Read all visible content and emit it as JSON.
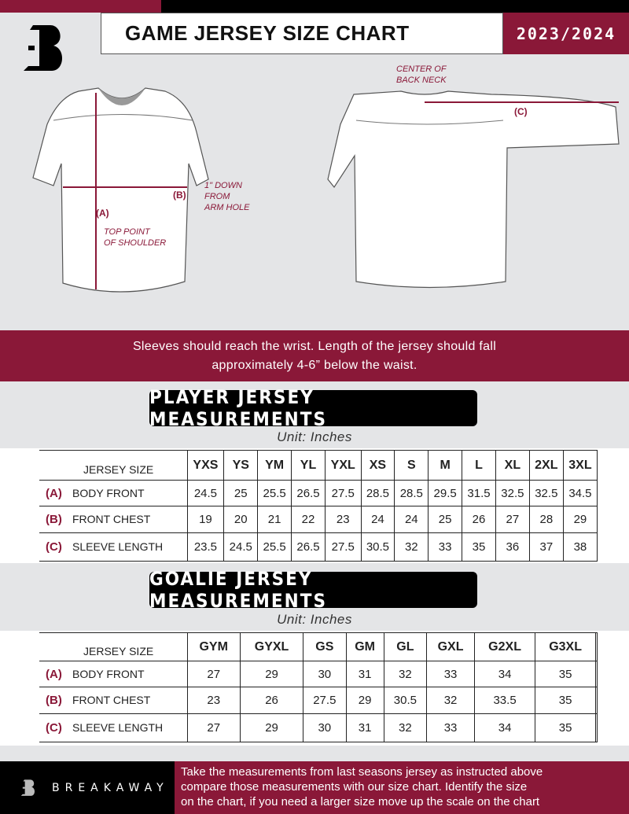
{
  "header": {
    "title": "GAME JERSEY SIZE CHART",
    "season": "2023/2024"
  },
  "diagram": {
    "label_a": "(A)",
    "label_b": "(B)",
    "label_c": "(C)",
    "top_point": [
      "TOP POINT",
      "OF SHOULDER"
    ],
    "down_from_arm": [
      "1\" DOWN",
      "FROM",
      "ARM HOLE"
    ],
    "center_back": [
      "CENTER OF",
      "BACK NECK"
    ]
  },
  "instruction": [
    "Sleeves should reach the wrist. Length of the jersey should fall",
    "approximately 4-6” below the waist."
  ],
  "player": {
    "title": "PLAYER JERSEY MEASUREMENTS",
    "unit": "Unit: Inches",
    "size_label": "JERSEY SIZE",
    "sizes": [
      "YXS",
      "YS",
      "YM",
      "YL",
      "YXL",
      "XS",
      "S",
      "M",
      "L",
      "XL",
      "2XL",
      "3XL"
    ],
    "rows": [
      {
        "letter": "(A)",
        "name": "BODY FRONT",
        "values": [
          "24.5",
          "25",
          "25.5",
          "26.5",
          "27.5",
          "28.5",
          "28.5",
          "29.5",
          "31.5",
          "32.5",
          "32.5",
          "34.5"
        ]
      },
      {
        "letter": "(B)",
        "name": "FRONT CHEST",
        "values": [
          "19",
          "20",
          "21",
          "22",
          "23",
          "24",
          "24",
          "25",
          "26",
          "27",
          "28",
          "29"
        ]
      },
      {
        "letter": "(C)",
        "name": "SLEEVE LENGTH",
        "values": [
          "23.5",
          "24.5",
          "25.5",
          "26.5",
          "27.5",
          "30.5",
          "32",
          "33",
          "35",
          "36",
          "37",
          "38"
        ]
      }
    ]
  },
  "goalie": {
    "title": "GOALIE JERSEY MEASUREMENTS",
    "unit": "Unit: Inches",
    "size_label": "JERSEY SIZE",
    "sizes": [
      "GYM",
      "GYXL",
      "GS",
      "GM",
      "GL",
      "GXL",
      "G2XL",
      "G3XL",
      ""
    ],
    "rows": [
      {
        "letter": "(A)",
        "name": "BODY FRONT",
        "values": [
          "27",
          "29",
          "30",
          "31",
          "32",
          "33",
          "34",
          "35",
          ""
        ]
      },
      {
        "letter": "(B)",
        "name": "FRONT CHEST",
        "values": [
          "23",
          "26",
          "27.5",
          "29",
          "30.5",
          "32",
          "33.5",
          "35",
          ""
        ]
      },
      {
        "letter": "(C)",
        "name": "SLEEVE LENGTH",
        "values": [
          "27",
          "29",
          "30",
          "31",
          "32",
          "33",
          "34",
          "35",
          ""
        ]
      }
    ]
  },
  "footer": {
    "brand": "BREAKAWAY",
    "text": [
      "Take the measurements from last seasons jersey as instructed above",
      "compare those measurements  with our size chart. Identify the size",
      "on the chart, if you need a larger size move up the scale on the chart"
    ]
  },
  "colors": {
    "accent": "#8a1838",
    "dark": "#000000",
    "background": "#e4e5e7"
  }
}
